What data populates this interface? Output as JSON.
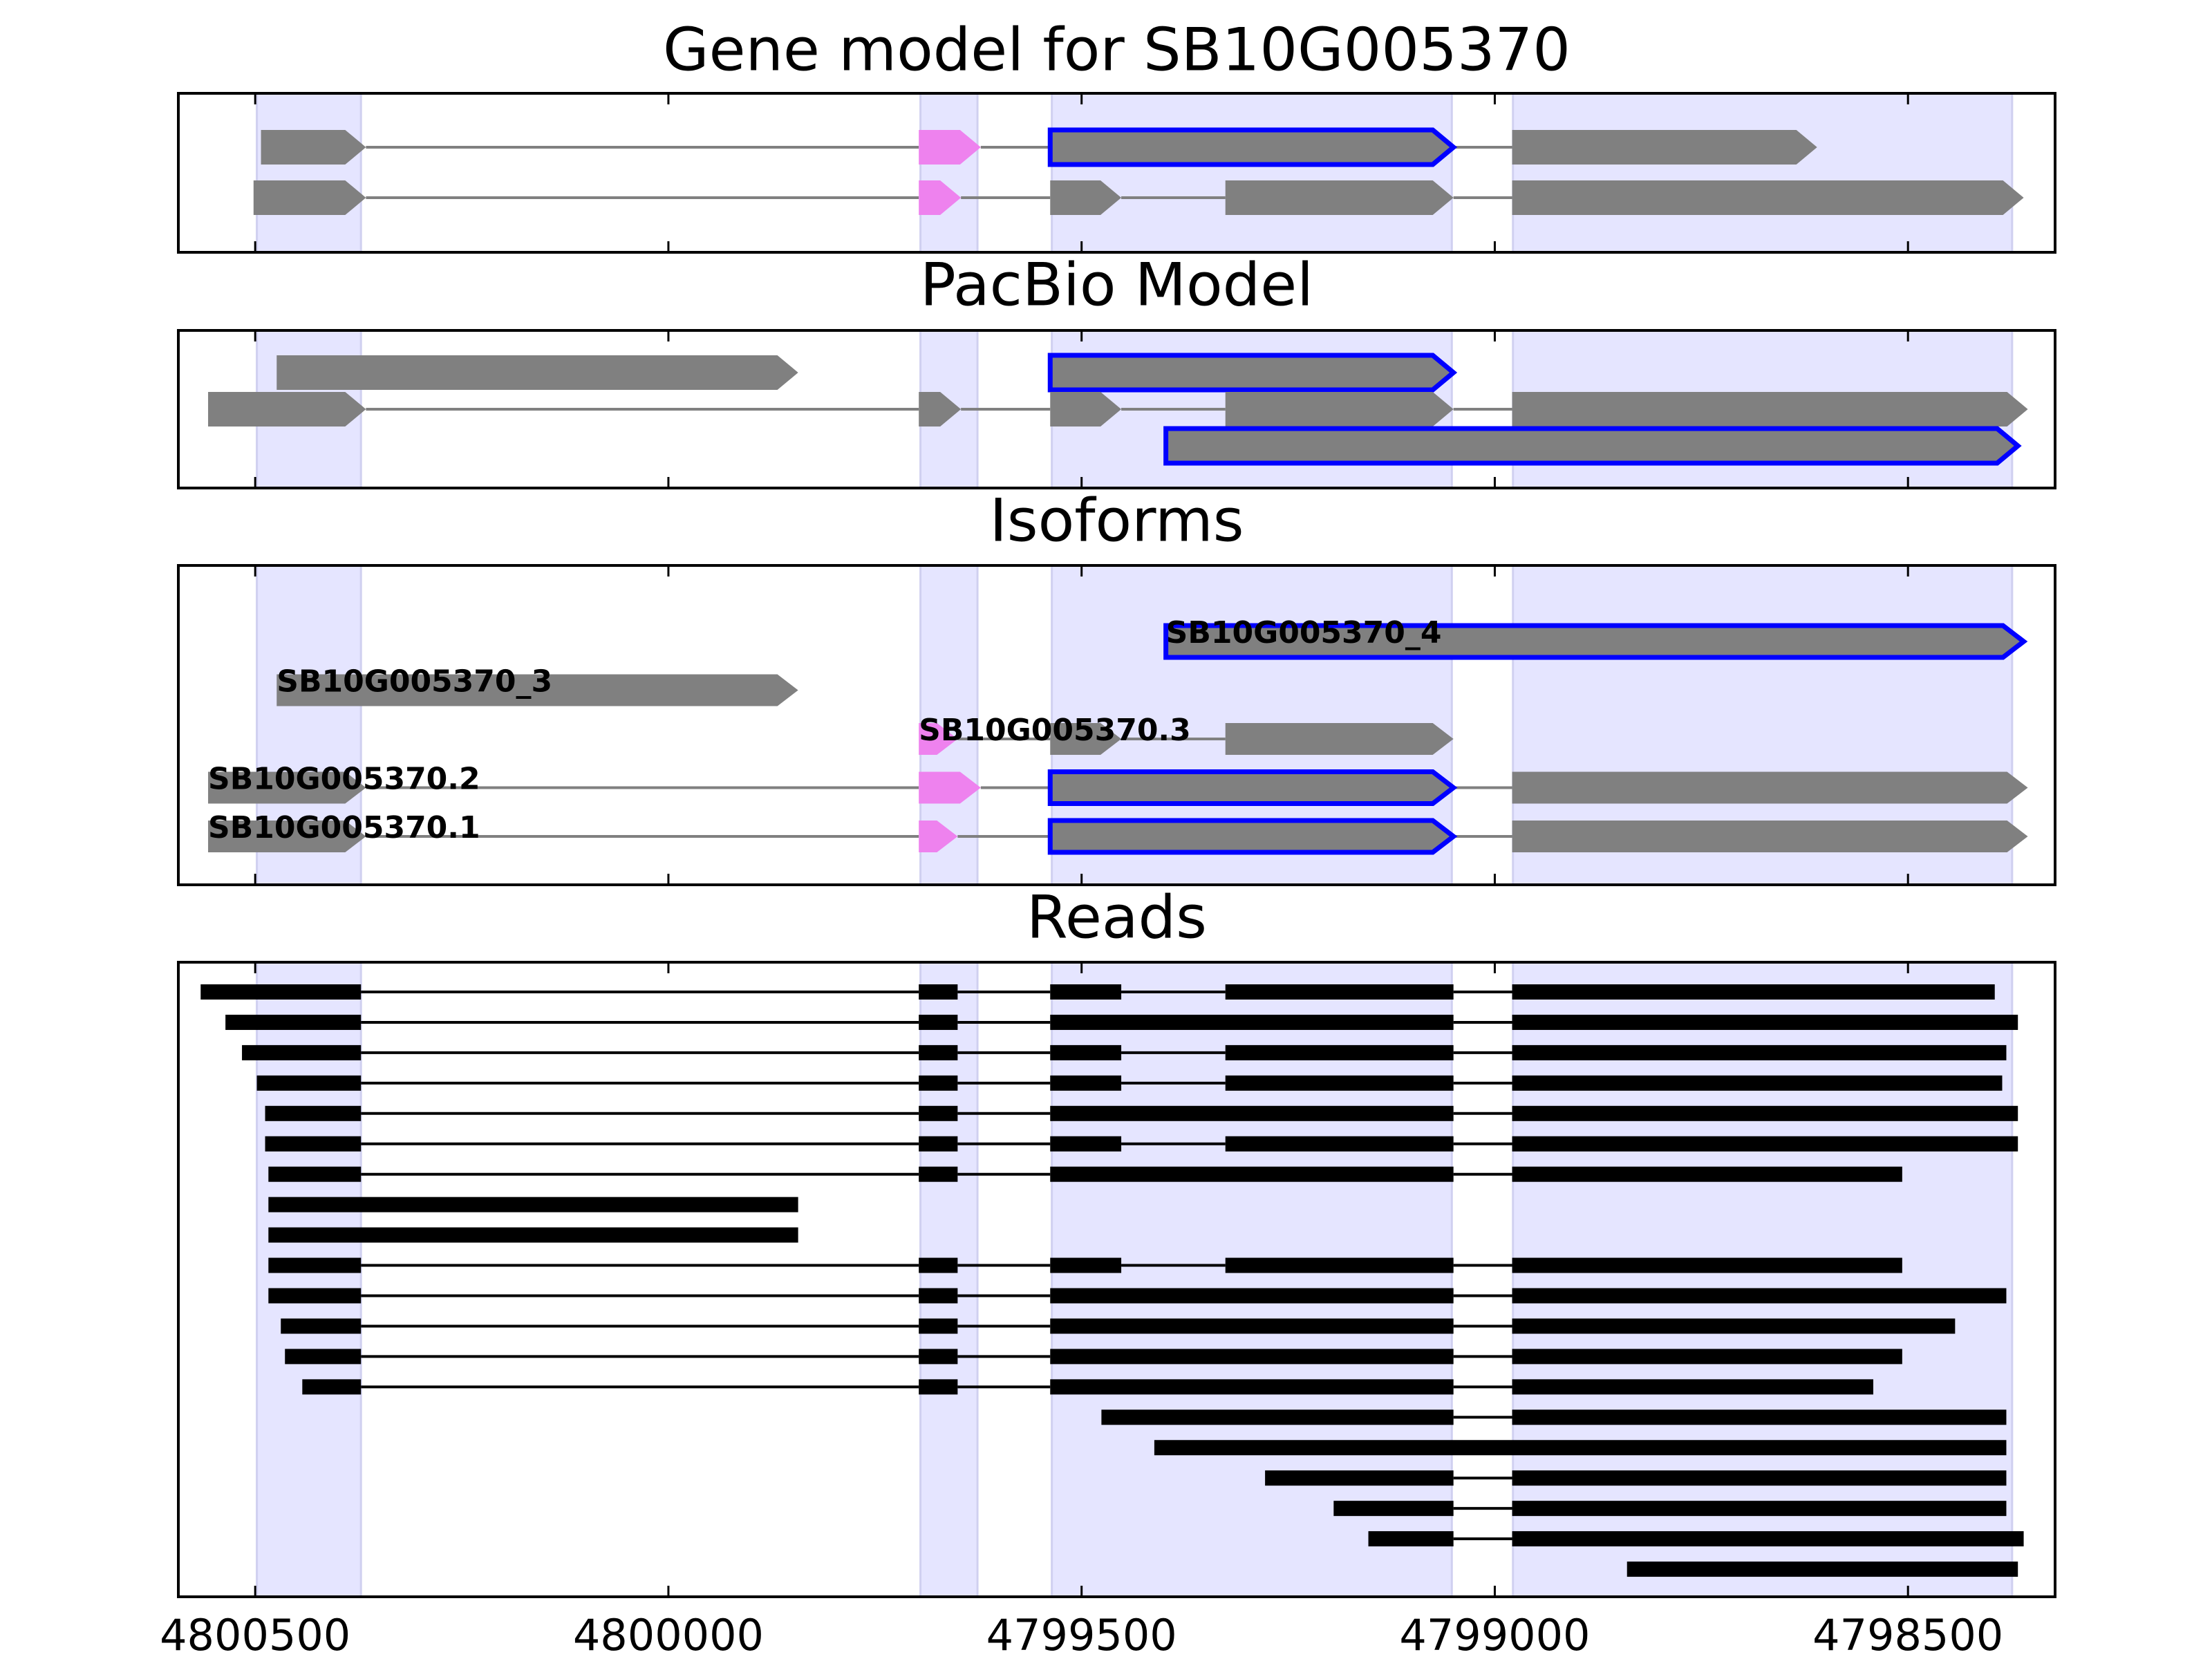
{
  "chart_data": {
    "type": "genome-tracks",
    "xlim": [
      4800593,
      4798322
    ],
    "xticks": [
      4800500,
      4800000,
      4799500,
      4799000,
      4798500
    ],
    "regions": [
      [
        4800498,
        4800372
      ],
      [
        4799695,
        4799626
      ],
      [
        4799536,
        4799052
      ],
      [
        4798978,
        4798374
      ]
    ],
    "region_color": "#e5e5ff",
    "panels": [
      {
        "type": "gene",
        "title": "Gene model for SB10G005370",
        "transcripts": [
          {
            "exons": [
              {
                "start": 4800493,
                "end": 4800366,
                "fill": "#808080"
              },
              {
                "start": 4799697,
                "end": 4799622,
                "fill": "#ee82ee"
              },
              {
                "start": 4799538,
                "end": 4799050,
                "fill": "#808080",
                "edge": "#0000ff"
              },
              {
                "start": 4798979,
                "end": 4798610,
                "fill": "#808080"
              }
            ]
          },
          {
            "exons": [
              {
                "start": 4800502,
                "end": 4800366,
                "fill": "#808080"
              },
              {
                "start": 4799697,
                "end": 4799646,
                "fill": "#ee82ee"
              },
              {
                "start": 4799538,
                "end": 4799452,
                "fill": "#808080"
              },
              {
                "start": 4799326,
                "end": 4799050,
                "fill": "#808080"
              },
              {
                "start": 4798979,
                "end": 4798360,
                "fill": "#808080"
              }
            ]
          }
        ]
      },
      {
        "type": "gene",
        "title": "PacBio Model",
        "transcripts": [
          {
            "introns": false,
            "exons": [
              {
                "start": 4800474,
                "end": 4799843,
                "fill": "#808080"
              },
              {
                "start": 4799538,
                "end": 4799050,
                "fill": "#808080",
                "edge": "#0000ff"
              }
            ]
          },
          {
            "exons": [
              {
                "start": 4800557,
                "end": 4800366,
                "fill": "#808080"
              },
              {
                "start": 4799697,
                "end": 4799646,
                "fill": "#808080"
              },
              {
                "start": 4799538,
                "end": 4799452,
                "fill": "#808080"
              },
              {
                "start": 4799326,
                "end": 4799050,
                "fill": "#808080"
              },
              {
                "start": 4798979,
                "end": 4798355,
                "fill": "#808080"
              }
            ]
          },
          {
            "exons": [
              {
                "start": 4799398,
                "end": 4798367,
                "fill": "#808080",
                "edge": "#0000ff"
              }
            ]
          }
        ]
      },
      {
        "type": "gene",
        "title": "Isoforms",
        "transcripts": [
          {
            "name": "SB10G005370_4",
            "exons": [
              {
                "start": 4799398,
                "end": 4798360,
                "fill": "#808080",
                "edge": "#0000ff"
              }
            ]
          },
          {
            "name": "SB10G005370_3",
            "exons": [
              {
                "start": 4800474,
                "end": 4799843,
                "fill": "#808080"
              }
            ]
          },
          {
            "name": "SB10G005370.3",
            "exons": [
              {
                "start": 4799697,
                "end": 4799650,
                "fill": "#ee82ee"
              },
              {
                "start": 4799538,
                "end": 4799452,
                "fill": "#808080"
              },
              {
                "start": 4799326,
                "end": 4799050,
                "fill": "#808080"
              }
            ]
          },
          {
            "name": "SB10G005370.2",
            "exons": [
              {
                "start": 4800557,
                "end": 4800366,
                "fill": "#808080"
              },
              {
                "start": 4799697,
                "end": 4799622,
                "fill": "#ee82ee"
              },
              {
                "start": 4799538,
                "end": 4799050,
                "fill": "#808080",
                "edge": "#0000ff"
              },
              {
                "start": 4798979,
                "end": 4798355,
                "fill": "#808080"
              }
            ]
          },
          {
            "name": "SB10G005370.1",
            "exons": [
              {
                "start": 4800557,
                "end": 4800366,
                "fill": "#808080"
              },
              {
                "start": 4799697,
                "end": 4799650,
                "fill": "#ee82ee"
              },
              {
                "start": 4799538,
                "end": 4799050,
                "fill": "#808080",
                "edge": "#0000ff"
              },
              {
                "start": 4798979,
                "end": 4798355,
                "fill": "#808080"
              }
            ]
          }
        ]
      },
      {
        "type": "reads",
        "title": "Reads",
        "color": "#000000",
        "reads": [
          [
            [
              4800566,
              4800372
            ],
            [
              4799697,
              4799650
            ],
            [
              4799538,
              4799452
            ],
            [
              4799326,
              4799050
            ],
            [
              4798979,
              4798395
            ]
          ],
          [
            [
              4800536,
              4800372
            ],
            [
              4799697,
              4799650
            ],
            [
              4799538,
              4799050
            ],
            [
              4798979,
              4798367
            ]
          ],
          [
            [
              4800516,
              4800372
            ],
            [
              4799697,
              4799650
            ],
            [
              4799538,
              4799452
            ],
            [
              4799326,
              4799050
            ],
            [
              4798979,
              4798381
            ]
          ],
          [
            [
              4800498,
              4800372
            ],
            [
              4799697,
              4799650
            ],
            [
              4799538,
              4799452
            ],
            [
              4799326,
              4799050
            ],
            [
              4798979,
              4798386
            ]
          ],
          [
            [
              4800488,
              4800372
            ],
            [
              4799697,
              4799650
            ],
            [
              4799538,
              4799050
            ],
            [
              4798979,
              4798367
            ]
          ],
          [
            [
              4800488,
              4800372
            ],
            [
              4799697,
              4799650
            ],
            [
              4799538,
              4799452
            ],
            [
              4799326,
              4799050
            ],
            [
              4798979,
              4798367
            ]
          ],
          [
            [
              4800484,
              4800372
            ],
            [
              4799697,
              4799650
            ],
            [
              4799538,
              4799050
            ],
            [
              4798979,
              4798507
            ]
          ],
          [
            [
              4800484,
              4799843
            ]
          ],
          [
            [
              4800484,
              4799843
            ]
          ],
          [
            [
              4800484,
              4800372
            ],
            [
              4799697,
              4799650
            ],
            [
              4799538,
              4799452
            ],
            [
              4799326,
              4799050
            ],
            [
              4798979,
              4798507
            ]
          ],
          [
            [
              4800484,
              4800372
            ],
            [
              4799697,
              4799650
            ],
            [
              4799538,
              4799050
            ],
            [
              4798979,
              4798381
            ]
          ],
          [
            [
              4800469,
              4800372
            ],
            [
              4799697,
              4799650
            ],
            [
              4799538,
              4799050
            ],
            [
              4798979,
              4798443
            ]
          ],
          [
            [
              4800464,
              4800372
            ],
            [
              4799697,
              4799650
            ],
            [
              4799538,
              4799050
            ],
            [
              4798979,
              4798507
            ]
          ],
          [
            [
              4800443,
              4800372
            ],
            [
              4799697,
              4799650
            ],
            [
              4799538,
              4799050
            ],
            [
              4798979,
              4798542
            ]
          ],
          [
            [
              4799476,
              4799050
            ],
            [
              4798979,
              4798381
            ]
          ],
          [
            [
              4799412,
              4798381
            ]
          ],
          [
            [
              4799278,
              4799050
            ],
            [
              4798979,
              4798381
            ]
          ],
          [
            [
              4799195,
              4799050
            ],
            [
              4798979,
              4798381
            ]
          ],
          [
            [
              4799153,
              4799050
            ],
            [
              4798979,
              4798360
            ]
          ],
          [
            [
              4798840,
              4798367
            ]
          ]
        ]
      }
    ]
  }
}
